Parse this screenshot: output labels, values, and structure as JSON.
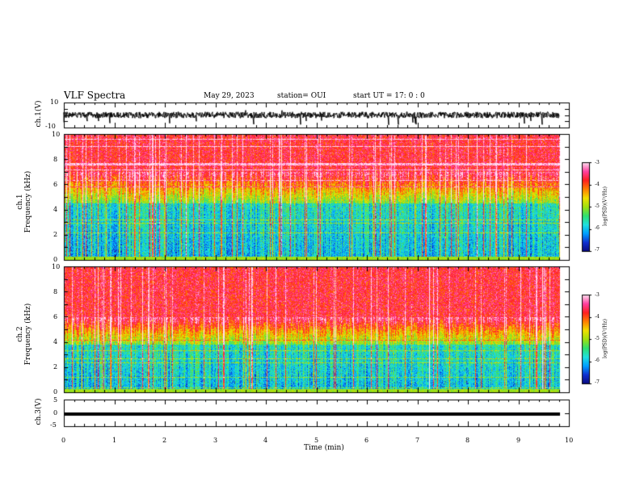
{
  "header": {
    "title": "VLF Spectra",
    "date": "May 29, 2023",
    "station": "station= OUI",
    "start_ut": "start  UT =   17: 0  : 0"
  },
  "colors": {
    "spectrogram_scale": [
      "#0a0a80",
      "#1030d0",
      "#00a0ff",
      "#20e0e0",
      "#30e070",
      "#a0e010",
      "#f0e000",
      "#ff8000",
      "#ff2020",
      "#ff40a0",
      "#ffe0f0"
    ]
  },
  "chart_data": [
    {
      "type": "line",
      "name": "ch1-waveform",
      "ylabel": "ch.1(V)",
      "ylim": [
        -10,
        10
      ],
      "yticks": [
        "10",
        "-10"
      ],
      "description_values": {
        "baseline": 0,
        "noise_amplitude": 2.5,
        "spike_max": -8
      }
    },
    {
      "type": "heatmap",
      "name": "ch1-spectrogram",
      "ylabel_line1": "ch.1",
      "ylabel_line2": "Frequency  (kHz)",
      "ylim": [
        0,
        10
      ],
      "yticks": [
        "0",
        "2",
        "4",
        "6",
        "8",
        "10"
      ],
      "xlim": [
        0,
        9.83
      ],
      "colorbar": {
        "label": "log(PSD)(V²/Hz)",
        "range": [
          -7,
          -3
        ],
        "ticks": [
          "-3",
          "-4",
          "-5",
          "-6",
          "-7"
        ]
      },
      "quiet_band_top_khz": 4.5,
      "active_band_edge_khz": 6.0
    },
    {
      "type": "heatmap",
      "name": "ch2-spectrogram",
      "ylabel_line1": "ch.2",
      "ylabel_line2": "Frequency  (kHz)",
      "ylim": [
        0,
        10
      ],
      "yticks": [
        "0",
        "2",
        "4",
        "6",
        "8",
        "10"
      ],
      "xlim": [
        0,
        9.83
      ],
      "colorbar": {
        "label": "log(PSD)(V²/Hz)",
        "range": [
          -7,
          -3
        ],
        "ticks": [
          "-3",
          "-4",
          "-5",
          "-6",
          "-7"
        ]
      },
      "quiet_band_top_khz": 3.8,
      "active_band_edge_khz": 5.0
    },
    {
      "type": "line",
      "name": "ch3-waveform",
      "ylabel": "ch.3(V)",
      "ylim": [
        -5,
        5
      ],
      "yticks": [
        "5",
        "0",
        "-5"
      ],
      "constant_value": -0.5
    }
  ],
  "xaxis": {
    "label": "Time  (min)",
    "range": [
      0,
      10
    ],
    "ticks": [
      "0",
      "1",
      "2",
      "3",
      "4",
      "5",
      "6",
      "7",
      "8",
      "9",
      "10"
    ]
  }
}
